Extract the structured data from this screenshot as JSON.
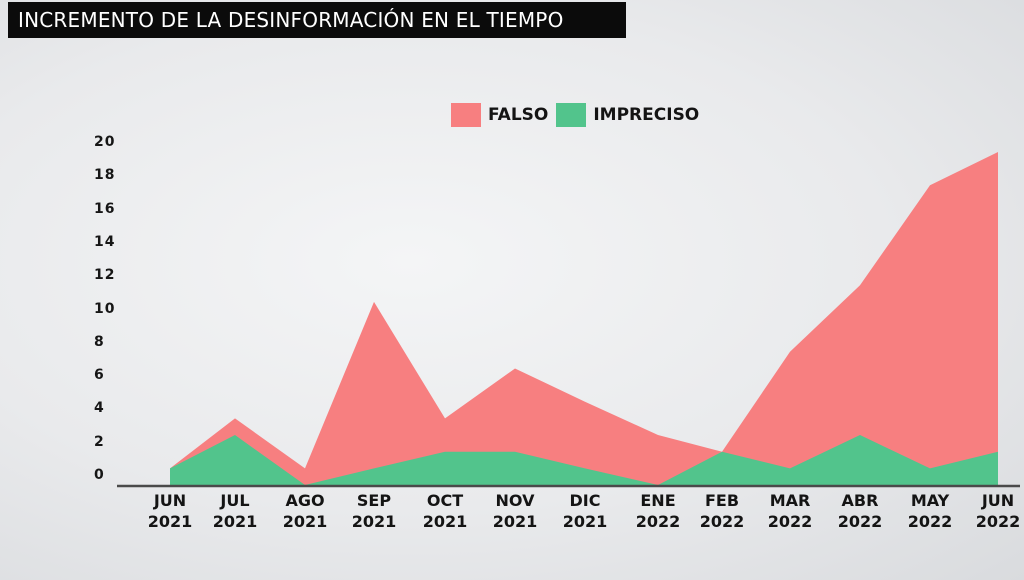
{
  "title": "INCREMENTO DE LA DESINFORMACIÓN EN EL TIEMPO",
  "legend": [
    {
      "label": "FALSO",
      "color": "#f77f80"
    },
    {
      "label": "IMPRECISO",
      "color": "#52c48c"
    }
  ],
  "y_ticks": [
    "0",
    "2",
    "4",
    "6",
    "8",
    "10",
    "12",
    "14",
    "16",
    "18",
    "20"
  ],
  "x_ticks": [
    {
      "month": "JUN",
      "year": "2021"
    },
    {
      "month": "JUL",
      "year": "2021"
    },
    {
      "month": "AGO",
      "year": "2021"
    },
    {
      "month": "SEP",
      "year": "2021"
    },
    {
      "month": "OCT",
      "year": "2021"
    },
    {
      "month": "NOV",
      "year": "2021"
    },
    {
      "month": "DIC",
      "year": "2021"
    },
    {
      "month": "ENE",
      "year": "2022"
    },
    {
      "month": "FEB",
      "year": "2022"
    },
    {
      "month": "MAR",
      "year": "2022"
    },
    {
      "month": "ABR",
      "year": "2022"
    },
    {
      "month": "MAY",
      "year": "2022"
    },
    {
      "month": "JUN",
      "year": "2022"
    }
  ],
  "chart_data": {
    "type": "area",
    "title": "INCREMENTO DE LA DESINFORMACIÓN EN EL TIEMPO",
    "categories": [
      "JUN 2021",
      "JUL 2021",
      "AGO 2021",
      "SEP 2021",
      "OCT 2021",
      "NOV 2021",
      "DIC 2021",
      "ENE 2022",
      "FEB 2022",
      "MAR 2022",
      "ABR 2022",
      "MAY 2022",
      "JUN 2022"
    ],
    "series": [
      {
        "name": "FALSO",
        "color": "#f77f80",
        "values": [
          1,
          4,
          1,
          11,
          4,
          7,
          5,
          3,
          2,
          8,
          12,
          18,
          20
        ]
      },
      {
        "name": "IMPRECISO",
        "color": "#52c48c",
        "values": [
          1,
          3,
          0,
          1,
          2,
          2,
          1,
          0,
          2,
          1,
          3,
          1,
          2
        ]
      }
    ],
    "xlabel": "",
    "ylabel": "",
    "ylim": [
      0,
      20
    ],
    "y_tick_step": 2,
    "grid": false,
    "legend_position": "top-center",
    "overlapping_areas": true
  }
}
